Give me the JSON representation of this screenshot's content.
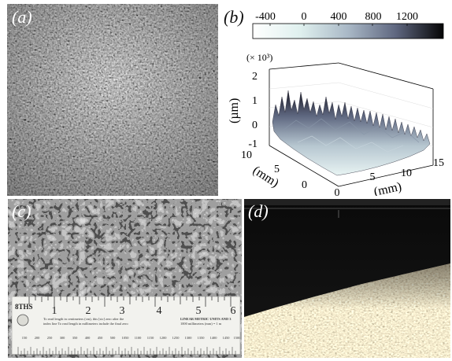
{
  "panels": {
    "a": {
      "label": "(a)"
    },
    "b": {
      "label": "(b)"
    },
    "c": {
      "label": "(c)"
    },
    "d": {
      "label": "(d)"
    }
  },
  "colorbar": {
    "ticks": [
      "-400",
      "0",
      "400",
      "800",
      "1200"
    ],
    "range": [
      -600,
      1400
    ]
  },
  "surface_plot": {
    "z_multiplier": "(× 10³)",
    "z_label": "(µm)",
    "z_ticks": [
      "2",
      "1",
      "0",
      "-1"
    ],
    "y_label": "(mm)",
    "y_ticks": [
      "10",
      "5",
      "0"
    ],
    "x_label": "(mm)",
    "x_ticks": [
      "0",
      "5",
      "10",
      "15"
    ]
  },
  "ruler": {
    "brand": "8THS",
    "inch_numbers": [
      "1",
      "2",
      "3",
      "4",
      "5",
      "6"
    ],
    "text_line1": "To read length in centimeters (cm), this [sic] zero after the",
    "text_line2": "index line To read length in millimeters include the final zero",
    "text_right1": "LINEAR METRIC UNITS AND 3",
    "text_right2": "1000 millimeters (mm) = 1 m",
    "mm_numbers": [
      "150",
      "200",
      "250",
      "300",
      "350",
      "400",
      "450",
      "500",
      "1050",
      "1100",
      "1150",
      "1200",
      "1250",
      "1300",
      "1350",
      "1400",
      "1450",
      "1500"
    ]
  }
}
